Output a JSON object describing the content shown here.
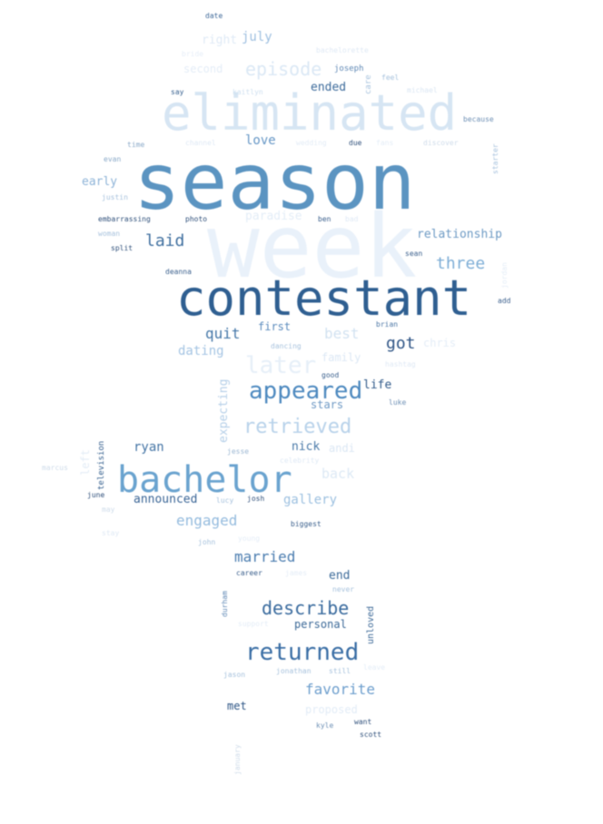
{
  "words": [
    {
      "text": "season",
      "color": "#5b94c1"
    },
    {
      "text": "contestant",
      "color": "#2f5f91"
    },
    {
      "text": "eliminated",
      "color": "#d6e5f3"
    },
    {
      "text": "week",
      "color": "#e9f1fa"
    },
    {
      "text": "bachelor",
      "color": "#6aa3cf"
    },
    {
      "text": "appeared",
      "color": "#4d89bf"
    },
    {
      "text": "returned",
      "color": "#3a6ea5"
    },
    {
      "text": "retrieved",
      "color": "#b8d2ea"
    },
    {
      "text": "describe",
      "color": "#3a6b9e"
    },
    {
      "text": "episode",
      "color": "#dbe8f5"
    },
    {
      "text": "laid",
      "color": "#3f6f9f"
    },
    {
      "text": "three",
      "color": "#7eaed6"
    },
    {
      "text": "relationship",
      "color": "#6d9ac4"
    },
    {
      "text": "engaged",
      "color": "#94bbde"
    },
    {
      "text": "married",
      "color": "#4a7caf"
    },
    {
      "text": "favorite",
      "color": "#6d9ecd"
    },
    {
      "text": "announced",
      "color": "#3a6596"
    },
    {
      "text": "gallery",
      "color": "#9cc0e0"
    },
    {
      "text": "got",
      "color": "#2e5485"
    },
    {
      "text": "quit",
      "color": "#4577a8"
    },
    {
      "text": "best",
      "color": "#d2e2f1"
    },
    {
      "text": "later",
      "color": "#e6eff8"
    },
    {
      "text": "love",
      "color": "#6596c5"
    },
    {
      "text": "paradise",
      "color": "#e3edf7"
    },
    {
      "text": "first",
      "color": "#5b8bbd"
    },
    {
      "text": "dating",
      "color": "#a4c4e3"
    },
    {
      "text": "ended",
      "color": "#3d6b9b"
    },
    {
      "text": "july",
      "color": "#9dbfe0"
    },
    {
      "text": "right",
      "color": "#dfeaf6"
    },
    {
      "text": "second",
      "color": "#e4edf7"
    },
    {
      "text": "early",
      "color": "#8eb4d8"
    },
    {
      "text": "ryan",
      "color": "#4474a5"
    },
    {
      "text": "nick",
      "color": "#4a79a8"
    },
    {
      "text": "life",
      "color": "#305a8a"
    },
    {
      "text": "stars",
      "color": "#6e99c4"
    },
    {
      "text": "back",
      "color": "#dde9f5"
    },
    {
      "text": "andi",
      "color": "#dbe7f4"
    },
    {
      "text": "end",
      "color": "#3c6a99"
    },
    {
      "text": "personal",
      "color": "#3b6897"
    },
    {
      "text": "proposed",
      "color": "#e2ecf7"
    },
    {
      "text": "family",
      "color": "#dce8f5"
    },
    {
      "text": "chris",
      "color": "#e4edf7"
    },
    {
      "text": "expecting",
      "color": "#b5cfe8"
    },
    {
      "text": "left",
      "color": "#e3ecf6"
    },
    {
      "text": "met",
      "color": "#2d5585"
    },
    {
      "text": "unloved",
      "color": "#3a6796"
    },
    {
      "text": "television",
      "color": "#2f5b8b"
    },
    {
      "text": "joseph",
      "color": "#5f88b5"
    },
    {
      "text": "michael",
      "color": "#dae6f3"
    },
    {
      "text": "kaitlyn",
      "color": "#cfe0f0"
    },
    {
      "text": "bachelorette",
      "color": "#dfe9f5"
    },
    {
      "text": "date",
      "color": "#3d6798"
    },
    {
      "text": "bride",
      "color": "#e6eef8"
    },
    {
      "text": "say",
      "color": "#36608f"
    },
    {
      "text": "wedding",
      "color": "#e3ecf6"
    },
    {
      "text": "channel",
      "color": "#dfe9f5"
    },
    {
      "text": "time",
      "color": "#8aa9c8"
    },
    {
      "text": "evan",
      "color": "#8aa9c8"
    },
    {
      "text": "justin",
      "color": "#a7c2dd"
    },
    {
      "text": "embarrassing",
      "color": "#2e4f7a"
    },
    {
      "text": "photo",
      "color": "#2e4f7a"
    },
    {
      "text": "woman",
      "color": "#a7c2dd"
    },
    {
      "text": "split",
      "color": "#2e4f7a"
    },
    {
      "text": "deanna",
      "color": "#3a5f8c"
    },
    {
      "text": "ben",
      "color": "#3a5f8c"
    },
    {
      "text": "bad",
      "color": "#dfe9f5"
    },
    {
      "text": "sean",
      "color": "#3a5f8c"
    },
    {
      "text": "add",
      "color": "#3a5f8c"
    },
    {
      "text": "brian",
      "color": "#4b76a5"
    },
    {
      "text": "dancing",
      "color": "#a7c2dd"
    },
    {
      "text": "good",
      "color": "#3a5f8c"
    },
    {
      "text": "hashtag",
      "color": "#dfe9f5"
    },
    {
      "text": "luke",
      "color": "#6e90b5"
    },
    {
      "text": "jesse",
      "color": "#9cb7d3"
    },
    {
      "text": "celebrity",
      "color": "#dfe9f5"
    },
    {
      "text": "josh",
      "color": "#2e4f7a"
    },
    {
      "text": "lucy",
      "color": "#a7c2dd"
    },
    {
      "text": "june",
      "color": "#2e4f7a"
    },
    {
      "text": "may",
      "color": "#cfdcea"
    },
    {
      "text": "marcus",
      "color": "#cfdcea"
    },
    {
      "text": "biggest",
      "color": "#3a5f8c"
    },
    {
      "text": "john",
      "color": "#a7c2dd"
    },
    {
      "text": "young",
      "color": "#e4edf7"
    },
    {
      "text": "career",
      "color": "#3a5f8c"
    },
    {
      "text": "james",
      "color": "#e4edf7"
    },
    {
      "text": "never",
      "color": "#a7c2dd"
    },
    {
      "text": "support",
      "color": "#e4edf7"
    },
    {
      "text": "jason",
      "color": "#a7c2dd"
    },
    {
      "text": "jonathan",
      "color": "#a7c2dd"
    },
    {
      "text": "still",
      "color": "#a7c2dd"
    },
    {
      "text": "leave",
      "color": "#e4edf7"
    },
    {
      "text": "kyle",
      "color": "#6e90b5"
    },
    {
      "text": "want",
      "color": "#2e4f7a"
    },
    {
      "text": "scott",
      "color": "#2e4f7a"
    },
    {
      "text": "january",
      "color": "#cfdcea"
    },
    {
      "text": "durham",
      "color": "#5f88b5"
    },
    {
      "text": "stay",
      "color": "#dfe9f5"
    },
    {
      "text": "due",
      "color": "#2e4f7a"
    },
    {
      "text": "fans",
      "color": "#e4edf7"
    },
    {
      "text": "discover",
      "color": "#cfdcea"
    },
    {
      "text": "because",
      "color": "#6e90b5"
    },
    {
      "text": "starter",
      "color": "#a7c2dd"
    },
    {
      "text": "feel",
      "color": "#a7c2dd"
    },
    {
      "text": "care",
      "color": "#a7c2dd"
    },
    {
      "text": "jordan",
      "color": "#e4edf7"
    }
  ]
}
